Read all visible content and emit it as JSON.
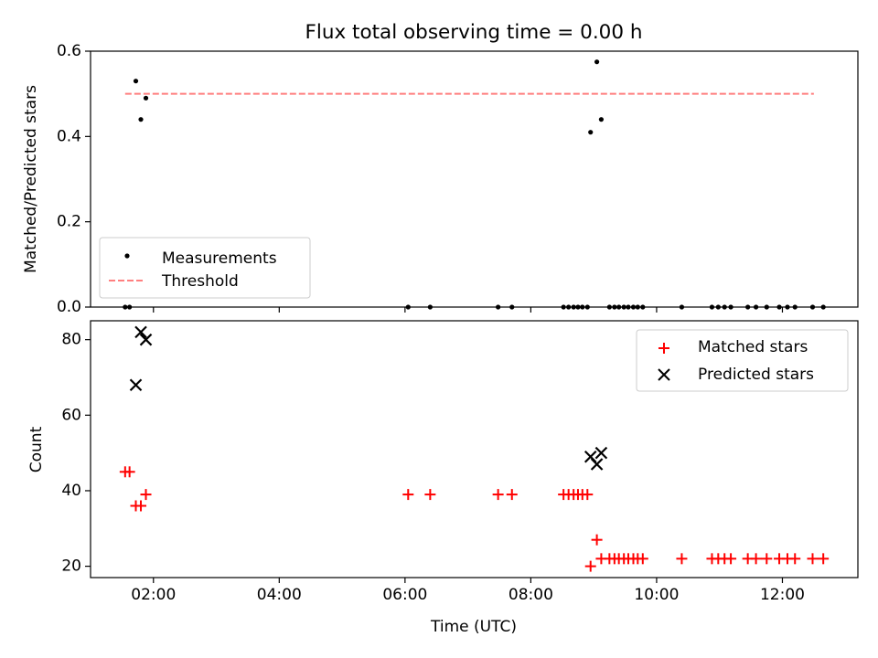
{
  "chart_data": [
    {
      "type": "scatter",
      "title": "Flux total observing time = 0.00 h",
      "xlabel": "",
      "ylabel": "Matched/Predicted stars",
      "ylim": [
        0,
        0.6
      ],
      "yticks": [
        0.0,
        0.2,
        0.4,
        0.6
      ],
      "ytick_labels": [
        "0.0",
        "0.2",
        "0.4",
        "0.6"
      ],
      "x_unit": "hours UTC",
      "xlim": [
        1.0,
        13.2
      ],
      "xticks": [
        2,
        4,
        6,
        8,
        10,
        12
      ],
      "legend": {
        "position": "lower-left",
        "entries": [
          {
            "label": "Measurements",
            "marker": "dot",
            "color": "#000000"
          },
          {
            "label": "Threshold",
            "marker": "dashed-line",
            "color": "#ff7f7f"
          }
        ]
      },
      "threshold": {
        "name": "Threshold",
        "y": 0.5,
        "x_range": [
          1.55,
          12.5
        ],
        "color": "#ff7f7f"
      },
      "series": [
        {
          "name": "Measurements",
          "color": "#000000",
          "points": [
            [
              1.55,
              0.0
            ],
            [
              1.62,
              0.0
            ],
            [
              1.72,
              0.53
            ],
            [
              1.8,
              0.44
            ],
            [
              1.88,
              0.49
            ],
            [
              6.05,
              0.0
            ],
            [
              6.4,
              0.0
            ],
            [
              7.48,
              0.0
            ],
            [
              7.7,
              0.0
            ],
            [
              8.52,
              0.0
            ],
            [
              8.6,
              0.0
            ],
            [
              8.68,
              0.0
            ],
            [
              8.75,
              0.0
            ],
            [
              8.82,
              0.0
            ],
            [
              8.9,
              0.0
            ],
            [
              8.95,
              0.41
            ],
            [
              9.05,
              0.575
            ],
            [
              9.12,
              0.44
            ],
            [
              9.25,
              0.0
            ],
            [
              9.33,
              0.0
            ],
            [
              9.4,
              0.0
            ],
            [
              9.48,
              0.0
            ],
            [
              9.55,
              0.0
            ],
            [
              9.63,
              0.0
            ],
            [
              9.7,
              0.0
            ],
            [
              9.78,
              0.0
            ],
            [
              10.4,
              0.0
            ],
            [
              10.88,
              0.0
            ],
            [
              10.98,
              0.0
            ],
            [
              11.08,
              0.0
            ],
            [
              11.18,
              0.0
            ],
            [
              11.45,
              0.0
            ],
            [
              11.58,
              0.0
            ],
            [
              11.75,
              0.0
            ],
            [
              11.95,
              0.0
            ],
            [
              12.08,
              0.0
            ],
            [
              12.2,
              0.0
            ],
            [
              12.48,
              0.0
            ],
            [
              12.65,
              0.0
            ]
          ]
        }
      ]
    },
    {
      "type": "scatter",
      "title": "",
      "xlabel": "Time (UTC)",
      "ylabel": "Count",
      "ylim": [
        17,
        85
      ],
      "yticks": [
        20,
        40,
        60,
        80
      ],
      "ytick_labels": [
        "20",
        "40",
        "60",
        "80"
      ],
      "xlim": [
        1.0,
        13.2
      ],
      "xticks": [
        2,
        4,
        6,
        8,
        10,
        12
      ],
      "xtick_labels": [
        "02:00",
        "04:00",
        "06:00",
        "08:00",
        "10:00",
        "12:00"
      ],
      "legend": {
        "position": "top-right",
        "entries": [
          {
            "label": "Matched stars",
            "marker": "plus",
            "color": "#ff0000"
          },
          {
            "label": "Predicted stars",
            "marker": "x",
            "color": "#000000"
          }
        ]
      },
      "series": [
        {
          "name": "Matched stars",
          "marker": "plus",
          "color": "#ff0000",
          "points": [
            [
              1.55,
              45
            ],
            [
              1.62,
              45
            ],
            [
              1.72,
              36
            ],
            [
              1.8,
              36
            ],
            [
              1.88,
              39
            ],
            [
              6.05,
              39
            ],
            [
              6.4,
              39
            ],
            [
              7.48,
              39
            ],
            [
              7.7,
              39
            ],
            [
              8.52,
              39
            ],
            [
              8.6,
              39
            ],
            [
              8.68,
              39
            ],
            [
              8.75,
              39
            ],
            [
              8.82,
              39
            ],
            [
              8.9,
              39
            ],
            [
              8.95,
              20
            ],
            [
              9.05,
              27
            ],
            [
              9.12,
              22
            ],
            [
              9.25,
              22
            ],
            [
              9.33,
              22
            ],
            [
              9.4,
              22
            ],
            [
              9.48,
              22
            ],
            [
              9.55,
              22
            ],
            [
              9.63,
              22
            ],
            [
              9.7,
              22
            ],
            [
              9.78,
              22
            ],
            [
              10.4,
              22
            ],
            [
              10.88,
              22
            ],
            [
              10.98,
              22
            ],
            [
              11.08,
              22
            ],
            [
              11.18,
              22
            ],
            [
              11.45,
              22
            ],
            [
              11.58,
              22
            ],
            [
              11.75,
              22
            ],
            [
              11.95,
              22
            ],
            [
              12.08,
              22
            ],
            [
              12.2,
              22
            ],
            [
              12.48,
              22
            ],
            [
              12.65,
              22
            ]
          ]
        },
        {
          "name": "Predicted stars",
          "marker": "x",
          "color": "#000000",
          "points": [
            [
              1.72,
              68
            ],
            [
              1.8,
              82
            ],
            [
              1.88,
              80
            ],
            [
              8.95,
              49
            ],
            [
              9.05,
              47
            ],
            [
              9.12,
              50
            ]
          ]
        }
      ]
    }
  ]
}
